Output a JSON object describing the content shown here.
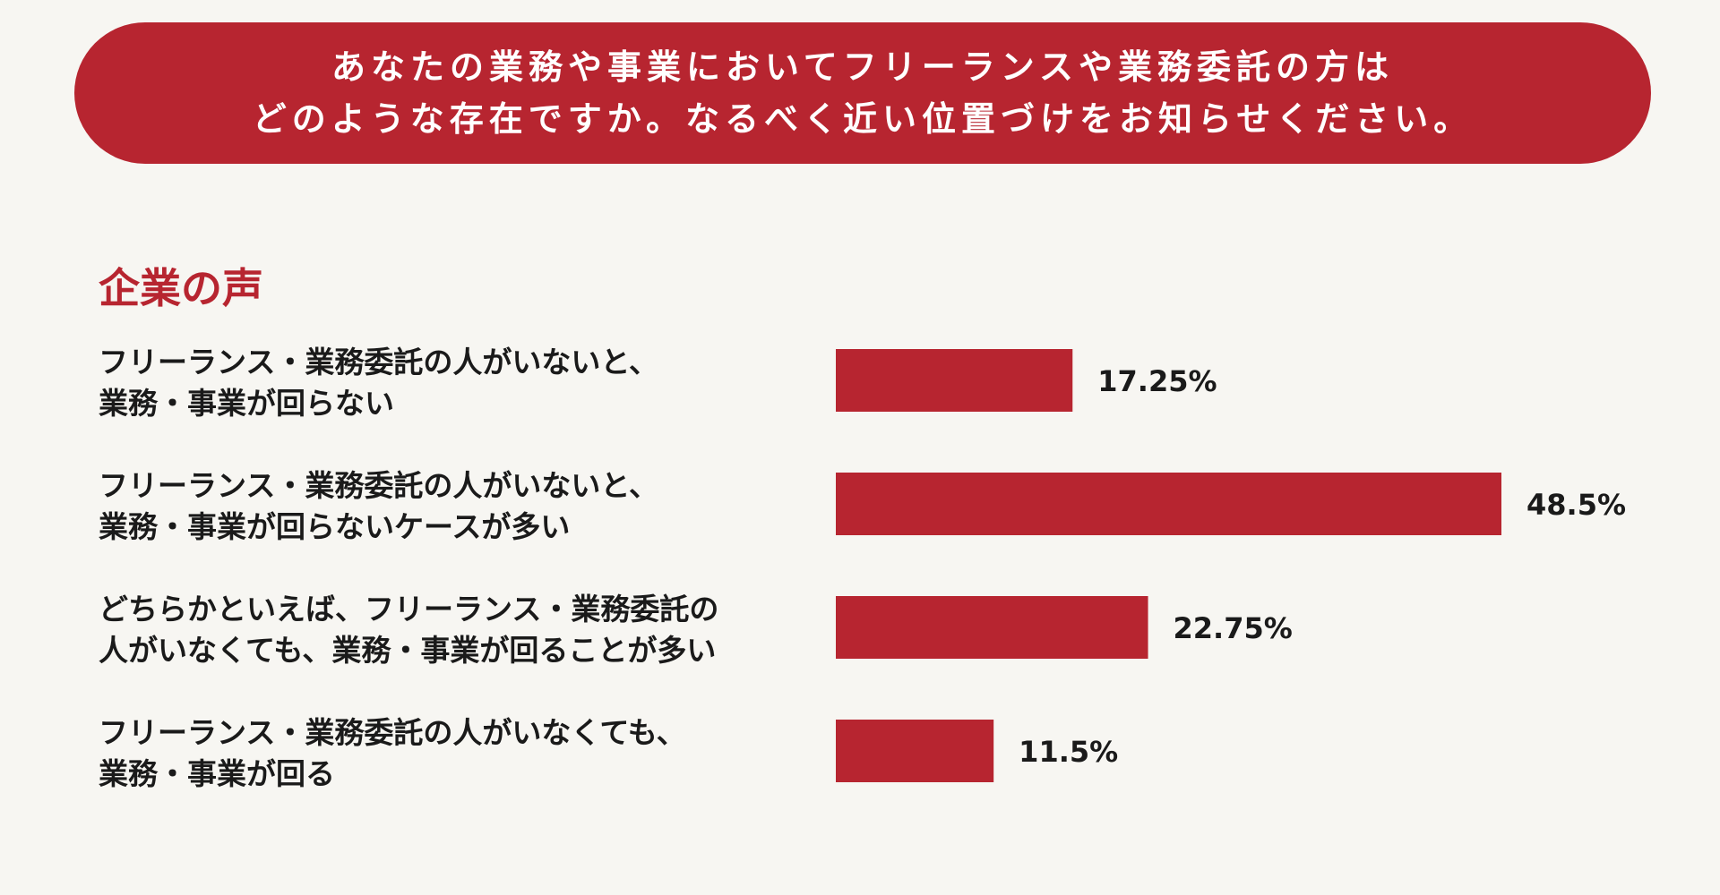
{
  "question": {
    "line1": "あなたの業務や事業においてフリーランスや業務委託の方は",
    "line2": "どのような存在ですか。なるべく近い位置づけをお知らせください。"
  },
  "section_title": "企業の声",
  "colors": {
    "accent": "#b72530",
    "background": "#f7f6f2",
    "text": "#1a1a1a"
  },
  "chart_data": {
    "type": "bar",
    "orientation": "horizontal",
    "categories": [
      [
        "フリーランス・業務委託の人がいないと、",
        "業務・事業が回らない"
      ],
      [
        "フリーランス・業務委託の人がいないと、",
        "業務・事業が回らないケースが多い"
      ],
      [
        "どちらかといえば、フリーランス・業務委託の",
        "人がいなくても、業務・事業が回ることが多い"
      ],
      [
        "フリーランス・業務委託の人がいなくても、",
        "業務・事業が回る"
      ]
    ],
    "values": [
      17.25,
      48.5,
      22.75,
      11.5
    ],
    "value_labels": [
      "17.25%",
      "48.5%",
      "22.75%",
      "11.5%"
    ],
    "grid": false
  }
}
